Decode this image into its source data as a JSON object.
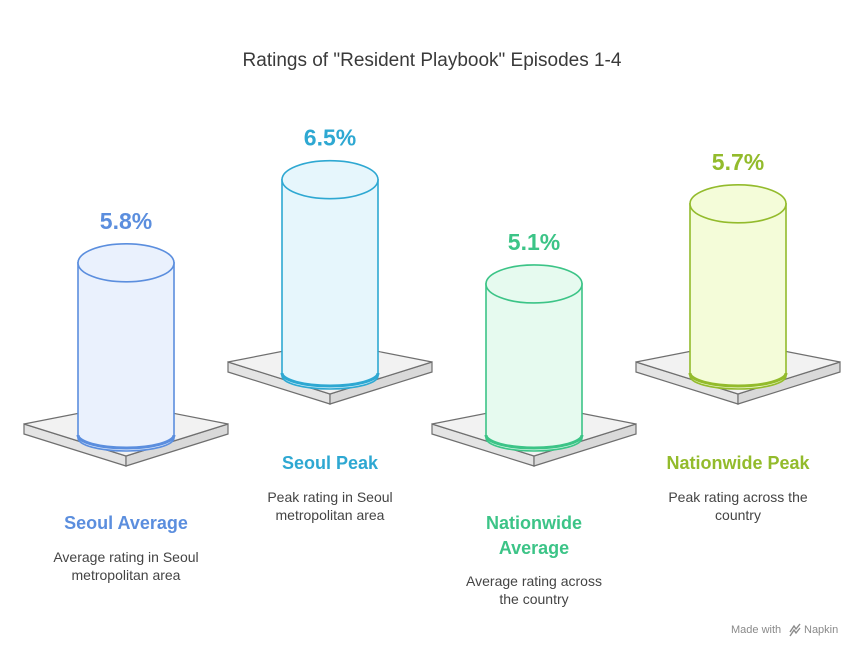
{
  "chart_data": {
    "type": "bar",
    "title": "Ratings of \"Resident Playbook\" Episodes 1-4",
    "categories": [
      "Seoul Average",
      "Seoul Peak",
      "Nationwide Average",
      "Nationwide Peak"
    ],
    "values": [
      5.8,
      6.5,
      5.1,
      5.7
    ],
    "value_labels": [
      "5.8%",
      "6.5%",
      "5.1%",
      "5.7%"
    ],
    "descriptions": [
      [
        "Average rating in Seoul",
        "metropolitan area"
      ],
      [
        "Peak rating in Seoul",
        "metropolitan area"
      ],
      [
        "Average rating across",
        "the country"
      ],
      [
        "Peak rating across the",
        "country"
      ]
    ],
    "category_lines": [
      [
        "Seoul Average"
      ],
      [
        "Seoul Peak"
      ],
      [
        "Nationwide",
        "Average"
      ],
      [
        "Nationwide Peak"
      ]
    ],
    "colors": [
      {
        "stroke": "#5b8ede",
        "fill": "#eaf1fd",
        "text": "#5b8ede"
      },
      {
        "stroke": "#2ea8d2",
        "fill": "#e6f6fc",
        "text": "#2ea8d2"
      },
      {
        "stroke": "#3cc487",
        "fill": "#e6faef",
        "text": "#3cc487"
      },
      {
        "stroke": "#93bb2c",
        "fill": "#f4fcd9",
        "text": "#93bb2c"
      }
    ]
  },
  "footer": {
    "made_with": "Made with",
    "brand": "Napkin"
  }
}
